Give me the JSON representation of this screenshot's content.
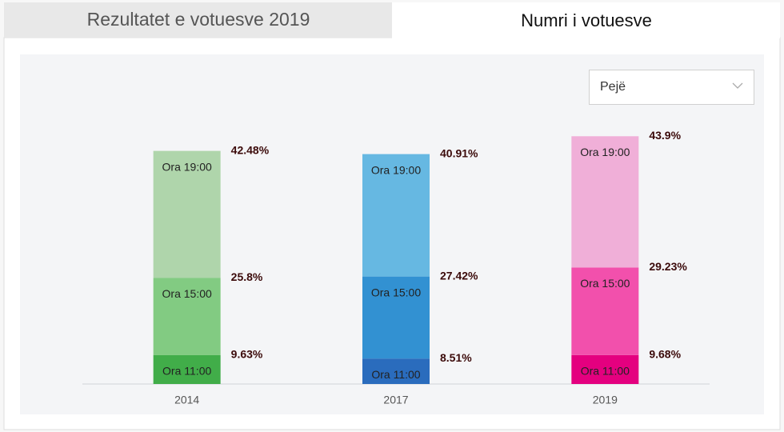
{
  "tabs": [
    "Rezultatet e votuesve 2019",
    "Numri i votuesve"
  ],
  "dropdown": "Pejë",
  "chart_data": {
    "type": "bar",
    "stacked": true,
    "categories": [
      "2014",
      "2017",
      "2019"
    ],
    "series": [
      {
        "name": "Ora 11:00",
        "colors": [
          "#41ad49",
          "#2a6cbd",
          "#e4007f"
        ],
        "values": [
          9.63,
          8.51,
          9.68
        ],
        "value_labels": [
          "9.63%",
          "8.51%",
          "9.68%"
        ]
      },
      {
        "name": "Ora 15:00",
        "colors": [
          "#82cb82",
          "#3291d2",
          "#f250ac"
        ],
        "values": [
          25.8,
          27.42,
          29.23
        ],
        "value_labels": [
          "25.8%",
          "27.42%",
          "29.23%"
        ]
      },
      {
        "name": "Ora 19:00",
        "colors": [
          "#afd5ab",
          "#66b8e2",
          "#f0afd8"
        ],
        "values": [
          42.48,
          40.91,
          43.9
        ],
        "value_labels": [
          "42.48%",
          "40.91%",
          "43.9%"
        ]
      }
    ],
    "ylim": [
      0,
      100
    ]
  }
}
